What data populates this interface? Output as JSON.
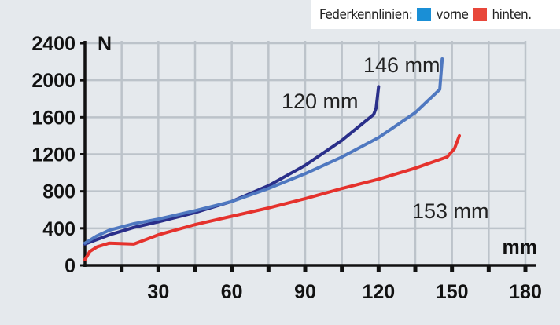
{
  "legend": {
    "title": "Federkennlinien:",
    "items": [
      {
        "label": "vorne",
        "color": "#1a8fd6"
      },
      {
        "label": "hinten.",
        "color": "#e8473a"
      }
    ]
  },
  "chart_data": {
    "type": "line",
    "xlabel": "mm",
    "ylabel": "N",
    "xlim": [
      0,
      180
    ],
    "ylim": [
      0,
      2400
    ],
    "xticks": [
      30,
      60,
      90,
      120,
      150,
      180
    ],
    "yticks": [
      0,
      400,
      800,
      1200,
      1600,
      2000,
      2400
    ],
    "grid": true,
    "legend_position": "top-right",
    "series": [
      {
        "label": "120 mm",
        "color": "#2a2f8a",
        "x": [
          0,
          5,
          10,
          20,
          30,
          45,
          60,
          75,
          90,
          105,
          118,
          119,
          120
        ],
        "y": [
          230,
          280,
          330,
          410,
          470,
          570,
          690,
          860,
          1080,
          1350,
          1630,
          1700,
          1930
        ]
      },
      {
        "label": "146 mm",
        "color": "#4f78c0",
        "x": [
          0,
          5,
          10,
          20,
          30,
          45,
          60,
          75,
          90,
          105,
          120,
          135,
          145,
          146
        ],
        "y": [
          240,
          320,
          380,
          450,
          500,
          590,
          690,
          830,
          990,
          1170,
          1380,
          1650,
          1900,
          2230
        ]
      },
      {
        "label": "153 mm",
        "color": "#e5322d",
        "x": [
          0,
          2,
          5,
          10,
          20,
          30,
          45,
          60,
          75,
          90,
          105,
          120,
          135,
          148,
          151,
          153
        ],
        "y": [
          60,
          150,
          200,
          240,
          230,
          330,
          440,
          530,
          620,
          720,
          830,
          930,
          1050,
          1170,
          1260,
          1400
        ]
      }
    ]
  }
}
